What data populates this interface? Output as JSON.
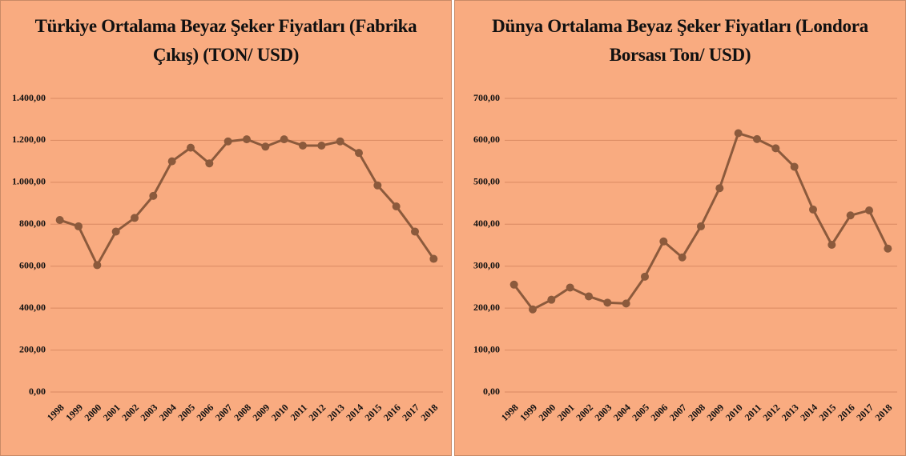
{
  "chart_data": [
    {
      "type": "line",
      "title": "Türkiye Ortalama Beyaz Şeker Fiyatları (Fabrika Çıkış) (TON/ USD)",
      "categories": [
        "1998",
        "1999",
        "2000",
        "2001",
        "2002",
        "2003",
        "2004",
        "2005",
        "2006",
        "2007",
        "2008",
        "2009",
        "2010",
        "2011",
        "2012",
        "2013",
        "2014",
        "2015",
        "2016",
        "2017",
        "2018"
      ],
      "values": [
        820,
        790,
        605,
        765,
        830,
        935,
        1100,
        1165,
        1090,
        1195,
        1205,
        1170,
        1205,
        1175,
        1175,
        1195,
        1140,
        985,
        885,
        765,
        635
      ],
      "color": "#8c5a3c",
      "ylim": [
        0,
        1400
      ],
      "yticks": [
        {
          "value": 0,
          "label": "0,00"
        },
        {
          "value": 200,
          "label": "200,00"
        },
        {
          "value": 400,
          "label": "400,00"
        },
        {
          "value": 600,
          "label": "600,00"
        },
        {
          "value": 800,
          "label": "800,00"
        },
        {
          "value": 1000,
          "label": "1.000,00"
        },
        {
          "value": 1200,
          "label": "1.200,00"
        },
        {
          "value": 1400,
          "label": "1.400,00"
        }
      ],
      "grid": true
    },
    {
      "type": "line",
      "title": "Dünya Ortalama Beyaz Şeker Fiyatları (Londora Borsası Ton/ USD)",
      "categories": [
        "1998",
        "1999",
        "2000",
        "2001",
        "2002",
        "2003",
        "2004",
        "2005",
        "2006",
        "2007",
        "2008",
        "2009",
        "2010",
        "2011",
        "2012",
        "2013",
        "2014",
        "2015",
        "2016",
        "2017",
        "2018"
      ],
      "values": [
        256,
        197,
        220,
        249,
        228,
        213,
        211,
        275,
        359,
        321,
        395,
        486,
        617,
        603,
        581,
        537,
        435,
        351,
        421,
        433,
        342
      ],
      "color": "#8c5a3c",
      "ylim": [
        0,
        700
      ],
      "yticks": [
        {
          "value": 0,
          "label": "0,00"
        },
        {
          "value": 100,
          "label": "100,00"
        },
        {
          "value": 200,
          "label": "200,00"
        },
        {
          "value": 300,
          "label": "300,00"
        },
        {
          "value": 400,
          "label": "400,00"
        },
        {
          "value": 500,
          "label": "500,00"
        },
        {
          "value": 600,
          "label": "600,00"
        },
        {
          "value": 700,
          "label": "700,00"
        }
      ],
      "grid": true
    }
  ]
}
